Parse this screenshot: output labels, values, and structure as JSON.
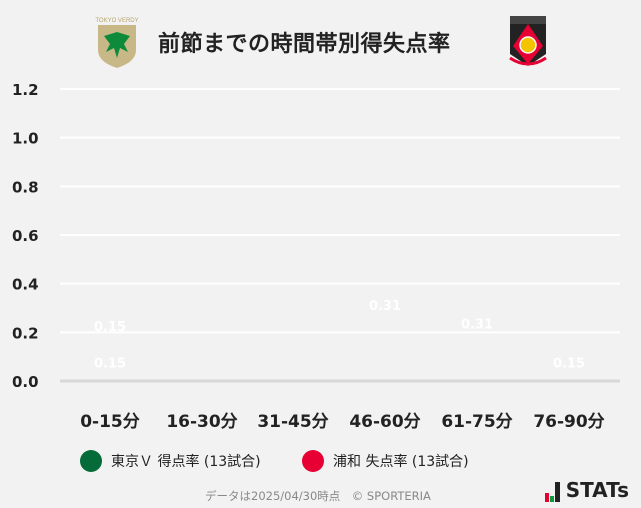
{
  "header": {
    "title": "前節までの時間帯別得失点率",
    "home_logo_text": "TOKYO VERDY",
    "away_logo": "urawa-reds-crest"
  },
  "chart_data": {
    "type": "bar",
    "stacked": true,
    "categories": [
      "0-15分",
      "16-30分",
      "31-45分",
      "46-60分",
      "61-75分",
      "76-90分"
    ],
    "series": [
      {
        "name": "東京Ｖ 得点率 (13試合)",
        "color": "#056b39",
        "values": [
          0.15,
          0.077,
          0.077,
          0.077,
          0.31,
          0
        ],
        "labels": [
          "0.15",
          "",
          "",
          "",
          "0.31",
          ""
        ]
      },
      {
        "name": "浦和 失点率 (13試合)",
        "color": "#e60033",
        "values": [
          0.15,
          0.077,
          0.077,
          0.31,
          0.077,
          0.15
        ],
        "labels": [
          "0.15",
          "",
          "",
          "0.31",
          "",
          "0.15"
        ]
      }
    ],
    "yticks": [
      "0.0",
      "0.2",
      "0.4",
      "0.6",
      "0.8",
      "1.0",
      "1.2"
    ],
    "ylim": [
      0,
      1.2
    ],
    "grid": true,
    "legend": "bottom"
  },
  "footer": {
    "note": "データは2025/04/30時点　© SPORTERIA",
    "brand": "STATs"
  }
}
